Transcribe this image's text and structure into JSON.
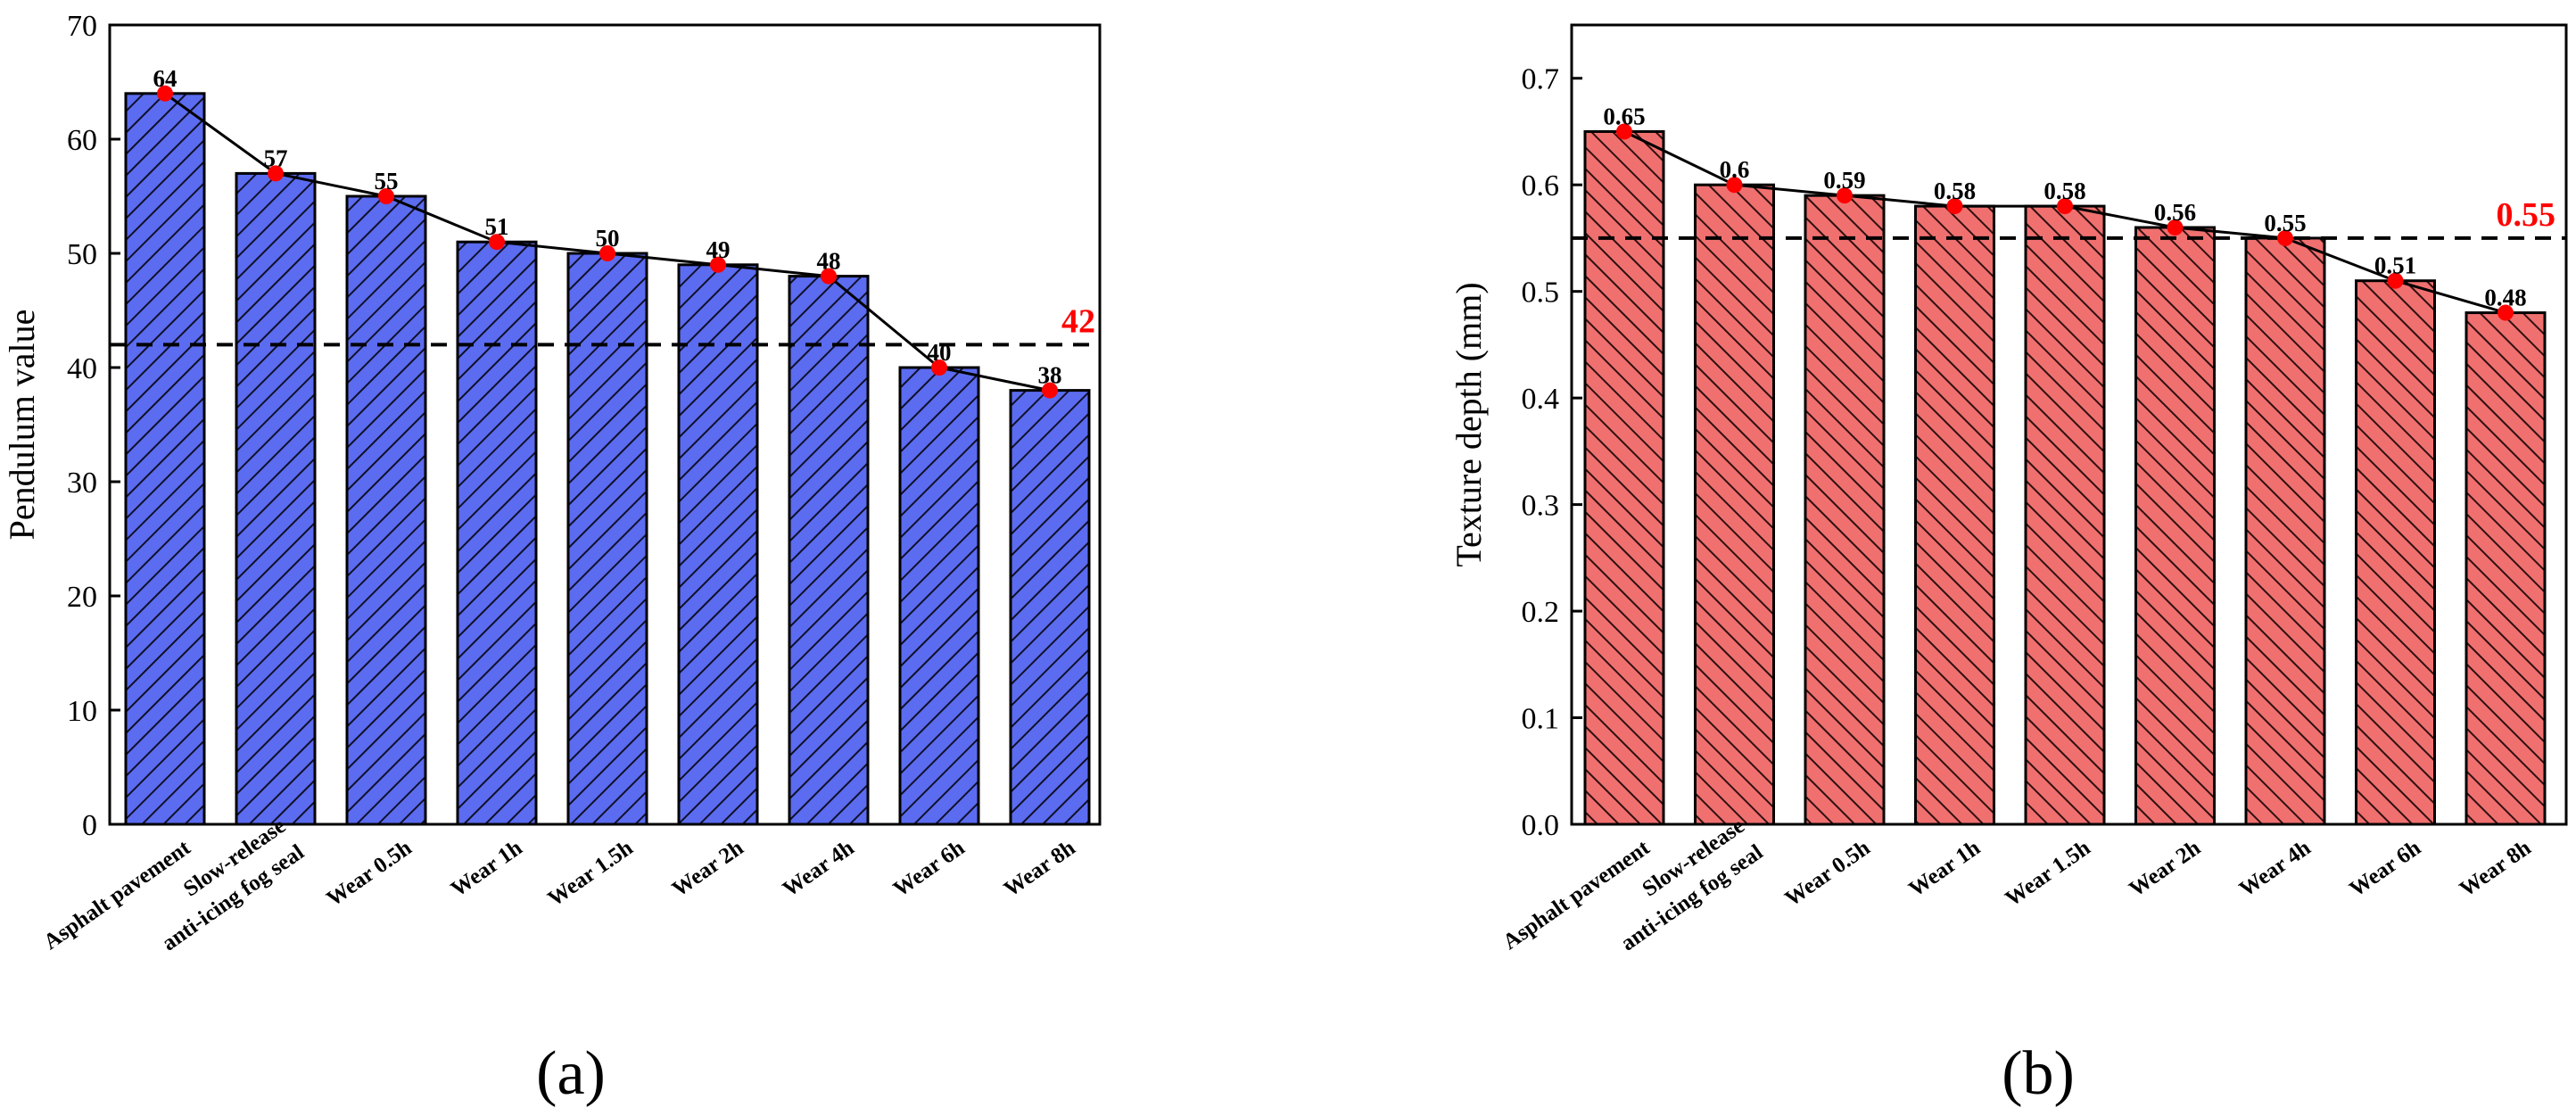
{
  "chart_data": [
    {
      "type": "bar",
      "panel": "(a)",
      "ylabel": "Pendulum value",
      "ylim": [
        0,
        70
      ],
      "yticks": [
        0,
        10,
        20,
        30,
        40,
        50,
        60,
        70
      ],
      "categories": [
        [
          "Asphalt pavement"
        ],
        [
          "Slow-release",
          "anti-icing fog seal"
        ],
        [
          "Wear 0.5h"
        ],
        [
          "Wear 1h"
        ],
        [
          "Wear 1.5h"
        ],
        [
          "Wear 2h"
        ],
        [
          "Wear 4h"
        ],
        [
          "Wear 6h"
        ],
        [
          "Wear 8h"
        ]
      ],
      "values": [
        64,
        57,
        55,
        51,
        50,
        49,
        48,
        40,
        38
      ],
      "value_labels": [
        "64",
        "57",
        "55",
        "51",
        "50",
        "49",
        "48",
        "40",
        "38"
      ],
      "reference_line": {
        "value": 42,
        "label": "42",
        "color": "#ff0000"
      },
      "bar_color": "#5b6cf0",
      "hatch": "forward-diagonal",
      "marker_color": "#ff0000",
      "line_color": "#000000",
      "grid": false
    },
    {
      "type": "bar",
      "panel": "(b)",
      "ylabel": "Texture depth (mm)",
      "ylim": [
        0,
        0.75
      ],
      "yticks": [
        0.0,
        0.1,
        0.2,
        0.3,
        0.4,
        0.5,
        0.6,
        0.7
      ],
      "ytick_labels": [
        "0.0",
        "0.1",
        "0.2",
        "0.3",
        "0.4",
        "0.5",
        "0.6",
        "0.7"
      ],
      "categories": [
        [
          "Asphalt pavement"
        ],
        [
          "Slow-release",
          "anti-icing fog seal"
        ],
        [
          "Wear 0.5h"
        ],
        [
          "Wear 1h"
        ],
        [
          "Wear 1.5h"
        ],
        [
          "Wear 2h"
        ],
        [
          "Wear 4h"
        ],
        [
          "Wear 6h"
        ],
        [
          "Wear 8h"
        ]
      ],
      "values": [
        0.65,
        0.6,
        0.59,
        0.58,
        0.58,
        0.56,
        0.55,
        0.51,
        0.48
      ],
      "value_labels": [
        "0.65",
        "0.6",
        "0.59",
        "0.58",
        "0.58",
        "0.56",
        "0.55",
        "0.51",
        "0.48"
      ],
      "reference_line": {
        "value": 0.55,
        "label": "0.55",
        "color": "#ff0000"
      },
      "bar_color": "#f07070",
      "hatch": "back-diagonal",
      "marker_color": "#ff0000",
      "line_color": "#000000",
      "grid": false
    }
  ]
}
